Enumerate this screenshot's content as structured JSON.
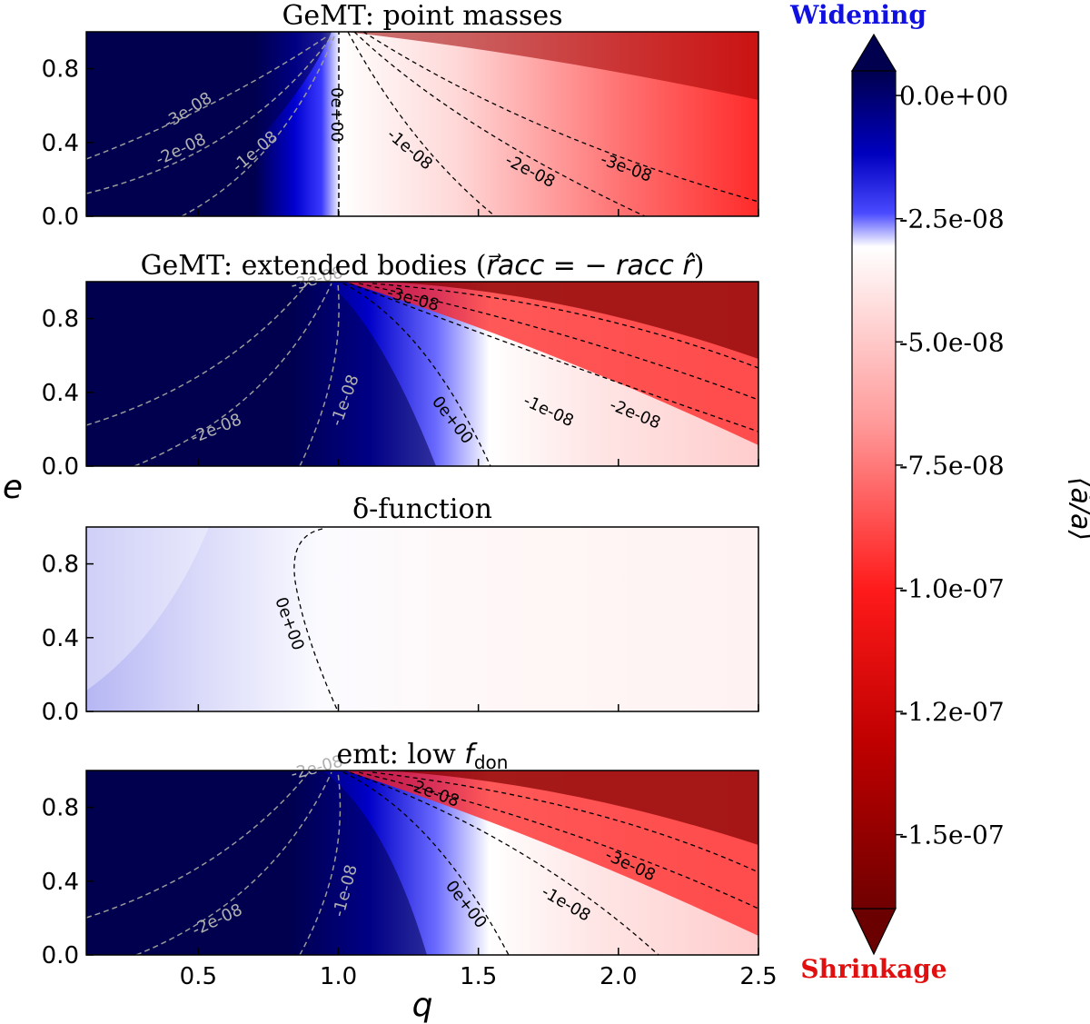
{
  "chart_data": [
    {
      "type": "heatmap",
      "title": "GeMT: point masses",
      "xlim": [
        0.1,
        2.5
      ],
      "ylim": [
        0.0,
        1.0
      ],
      "xticks": [
        "0.5",
        "1.0",
        "1.5",
        "2.0",
        "2.5"
      ],
      "yticks": [
        "0.0",
        "0.4",
        "0.8"
      ],
      "contours": [
        {
          "label": "-3e-08",
          "color": "gray"
        },
        {
          "label": "-2e-08",
          "color": "gray"
        },
        {
          "label": "-1e-08",
          "color": "gray"
        },
        {
          "label": "0e+00",
          "color": "black"
        },
        {
          "label": "-1e-08",
          "color": "black"
        },
        {
          "label": "-2e-08",
          "color": "black"
        },
        {
          "label": "-3e-08",
          "color": "black"
        }
      ]
    },
    {
      "type": "heatmap",
      "title_text": "GeMT: extended bodies (",
      "title_math": "r⃗acc = − racc r̂",
      "title_end": ")",
      "xlim": [
        0.1,
        2.5
      ],
      "ylim": [
        0.0,
        1.0
      ],
      "xticks": [
        "0.5",
        "1.0",
        "1.5",
        "2.0",
        "2.5"
      ],
      "yticks": [
        "0.0",
        "0.4",
        "0.8"
      ],
      "contours": [
        {
          "label": "-3e-08",
          "color": "gray"
        },
        {
          "label": "-2e-08",
          "color": "gray"
        },
        {
          "label": "-1e-08",
          "color": "gray"
        },
        {
          "label": "0e+00",
          "color": "black"
        },
        {
          "label": "-1e-08",
          "color": "black"
        },
        {
          "label": "-2e-08",
          "color": "black"
        },
        {
          "label": "-3e-08",
          "color": "black"
        }
      ]
    },
    {
      "type": "heatmap",
      "title": "δ-function",
      "xlim": [
        0.1,
        2.5
      ],
      "ylim": [
        0.0,
        1.0
      ],
      "xticks": [
        "0.5",
        "1.0",
        "1.5",
        "2.0",
        "2.5"
      ],
      "yticks": [
        "0.0",
        "0.4",
        "0.8"
      ],
      "contours": [
        {
          "label": "0e+00",
          "color": "black"
        }
      ]
    },
    {
      "type": "heatmap",
      "title": "emt: low ",
      "title_math": "f",
      "title_sub": "don",
      "xlim": [
        0.1,
        2.5
      ],
      "ylim": [
        0.0,
        1.0
      ],
      "xticks": [
        "0.5",
        "1.0",
        "1.5",
        "2.0",
        "2.5"
      ],
      "yticks": [
        "0.0",
        "0.4",
        "0.8"
      ],
      "contours": [
        {
          "label": "-2e-08",
          "color": "gray"
        },
        {
          "label": "-2e-08",
          "color": "gray"
        },
        {
          "label": "-1e-08",
          "color": "gray"
        },
        {
          "label": "0e+00",
          "color": "black"
        },
        {
          "label": "-2e-08",
          "color": "black"
        },
        {
          "label": "-3e-08",
          "color": "black"
        },
        {
          "label": "-1e-08",
          "color": "black"
        }
      ]
    }
  ],
  "axes": {
    "xlabel": "q",
    "ylabel": "e"
  },
  "colorbar": {
    "label": "⟨ȧ/a⟩",
    "top_label": "Widening",
    "bottom_label": "Shrinkage",
    "top_label_color": "#1010e0",
    "bottom_label_color": "#e01010",
    "ticks": [
      {
        "value": 0.0,
        "label": "0.0e+00"
      },
      {
        "value": -2.5e-08,
        "label": "-2.5e-08"
      },
      {
        "value": -5e-08,
        "label": "-5.0e-08"
      },
      {
        "value": -7.5e-08,
        "label": "-7.5e-08"
      },
      {
        "value": -1e-07,
        "label": "-1.0e-07"
      },
      {
        "value": -1.25e-07,
        "label": "-1.2e-07"
      },
      {
        "value": -1.5e-07,
        "label": "-1.5e-07"
      }
    ],
    "range": [
      -1.65e-07,
      5e-09
    ]
  }
}
